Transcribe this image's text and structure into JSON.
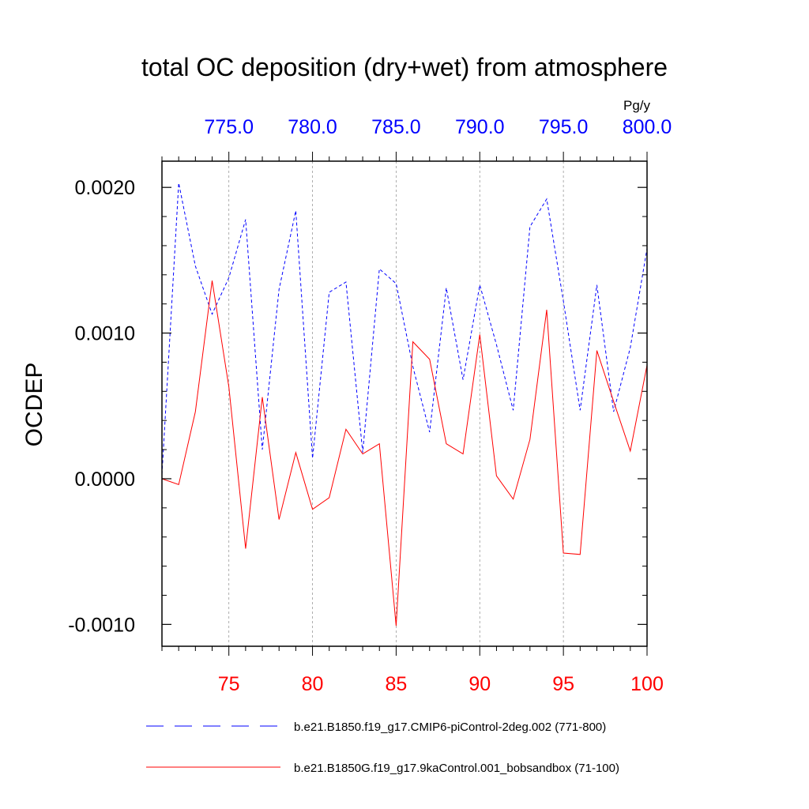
{
  "chart_data": {
    "type": "line",
    "title": "total OC deposition (dry+wet) from atmosphere",
    "ylabel": "OCDEP",
    "units_label": "Pg/y",
    "ylim": [
      -0.00115,
      0.00218
    ],
    "y_major_ticks": [
      -0.001,
      0.0,
      0.001,
      0.002
    ],
    "y_tick_labels": [
      "-0.0010",
      "0.0000",
      "0.0010",
      "0.0020"
    ],
    "y_minor_step": 0.0002,
    "x_bottom": {
      "range": [
        71,
        100
      ],
      "ticks": [
        75,
        80,
        85,
        90,
        95,
        100
      ],
      "tick_labels": [
        "75",
        "80",
        "85",
        "90",
        "95",
        "100"
      ],
      "color": "#ff0000"
    },
    "x_top": {
      "range": [
        771,
        800
      ],
      "ticks": [
        775,
        780,
        785,
        790,
        795,
        800
      ],
      "tick_labels": [
        "775.0",
        "780.0",
        "785.0",
        "790.0",
        "795.0",
        "800.0"
      ],
      "color": "#0000ff"
    },
    "grid_x": true,
    "series": [
      {
        "name": "b.e21.B1850.f19_g17.CMIP6-piControl-2deg.002 (771-800)",
        "axis": "top",
        "color": "#0000ff",
        "style": "dashed",
        "x": [
          771,
          772,
          773,
          774,
          775,
          776,
          777,
          778,
          779,
          780,
          781,
          782,
          783,
          784,
          785,
          786,
          787,
          788,
          789,
          790,
          791,
          792,
          793,
          794,
          795,
          796,
          797,
          798,
          799,
          800
        ],
        "values": [
          3e-05,
          0.00203,
          0.00146,
          0.00113,
          0.00138,
          0.00178,
          0.0002,
          0.0013,
          0.00184,
          0.00014,
          0.00128,
          0.00135,
          0.00018,
          0.00144,
          0.00134,
          0.00077,
          0.00032,
          0.00131,
          0.00068,
          0.00133,
          0.00092,
          0.00047,
          0.00173,
          0.00192,
          0.00122,
          0.00047,
          0.00133,
          0.00046,
          0.0009,
          0.00158
        ]
      },
      {
        "name": "b.e21.B1850G.f19_g17.9kaControl.001_bobsandbox (71-100)",
        "axis": "bottom",
        "color": "#ff0000",
        "style": "solid",
        "x": [
          71,
          72,
          73,
          74,
          75,
          76,
          77,
          78,
          79,
          80,
          81,
          82,
          83,
          84,
          85,
          86,
          87,
          88,
          89,
          90,
          91,
          92,
          93,
          94,
          95,
          96,
          97,
          98,
          99,
          100
        ],
        "values": [
          0.0,
          -4e-05,
          0.00046,
          0.00136,
          0.00063,
          -0.00048,
          0.00056,
          -0.00028,
          0.00018,
          -0.00021,
          -0.00013,
          0.00034,
          0.00017,
          0.00024,
          -0.00101,
          0.00094,
          0.00082,
          0.00024,
          0.00017,
          0.00099,
          2e-05,
          -0.00014,
          0.00027,
          0.00116,
          -0.00051,
          -0.00052,
          0.00088,
          0.00053,
          0.00019,
          0.00078
        ]
      }
    ],
    "legend": {
      "placement": "bottom",
      "items": [
        "b.e21.B1850.f19_g17.CMIP6-piControl-2deg.002 (771-800)",
        "b.e21.B1850G.f19_g17.9kaControl.001_bobsandbox (71-100)"
      ]
    }
  }
}
